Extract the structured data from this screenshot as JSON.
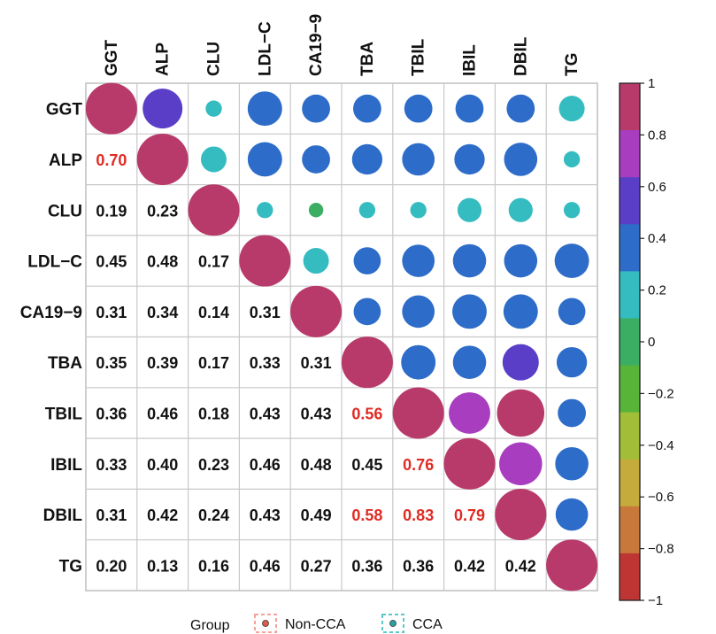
{
  "chart_data": {
    "type": "correlation-matrix",
    "variables": [
      "GGT",
      "ALP",
      "CLU",
      "LDL−C",
      "CA19−9",
      "TBA",
      "TBIL",
      "IBIL",
      "DBIL",
      "TG"
    ],
    "lower_triangle": [
      [],
      [
        "0.70"
      ],
      [
        "0.19",
        "0.23"
      ],
      [
        "0.45",
        "0.48",
        "0.17"
      ],
      [
        "0.31",
        "0.34",
        "0.14",
        "0.31"
      ],
      [
        "0.35",
        "0.39",
        "0.17",
        "0.33",
        "0.31"
      ],
      [
        "0.36",
        "0.46",
        "0.18",
        "0.43",
        "0.43",
        "0.56"
      ],
      [
        "0.33",
        "0.40",
        "0.23",
        "0.46",
        "0.48",
        "0.45",
        "0.76"
      ],
      [
        "0.31",
        "0.42",
        "0.24",
        "0.43",
        "0.49",
        "0.58",
        "0.83",
        "0.79"
      ],
      [
        "0.20",
        "0.13",
        "0.16",
        "0.46",
        "0.27",
        "0.36",
        "0.36",
        "0.42",
        "0.42"
      ]
    ],
    "upper_triangle": [
      [
        null,
        0.6,
        0.1,
        0.45,
        0.3,
        0.3,
        0.3,
        0.3,
        0.3,
        0.25
      ],
      [
        null,
        null,
        0.25,
        0.45,
        0.3,
        0.35,
        0.4,
        0.35,
        0.42,
        0.1
      ],
      [
        null,
        null,
        null,
        0.1,
        0.08,
        0.1,
        0.1,
        0.22,
        0.22,
        0.1
      ],
      [
        null,
        null,
        null,
        null,
        0.25,
        0.28,
        0.4,
        0.42,
        0.42,
        0.45
      ],
      [
        null,
        null,
        null,
        null,
        null,
        0.28,
        0.4,
        0.45,
        0.45,
        0.28
      ],
      [
        null,
        null,
        null,
        null,
        null,
        null,
        0.45,
        0.42,
        0.5,
        0.35
      ],
      [
        null,
        null,
        null,
        null,
        null,
        null,
        null,
        0.65,
        0.85,
        0.3
      ],
      [
        null,
        null,
        null,
        null,
        null,
        null,
        null,
        null,
        0.7,
        0.42
      ],
      [
        null,
        null,
        null,
        null,
        null,
        null,
        null,
        null,
        null,
        0.4
      ]
    ],
    "diagonal": 1,
    "highlight_threshold": 0.5,
    "highlight_color": "#e02b24",
    "text_color": "#111111",
    "colorbar": {
      "range": [
        -1,
        1
      ],
      "ticks": [
        "1",
        "0.8",
        "0.6",
        "0.4",
        "0.2",
        "0",
        "−0.2",
        "−0.4",
        "−0.6",
        "−0.8",
        "−1"
      ],
      "colors": [
        "#b83a6a",
        "#a83dc0",
        "#5a3ec8",
        "#2d6cc8",
        "#35bcc0",
        "#3cae64",
        "#58b438",
        "#a2be38",
        "#c4ab3c",
        "#c8783a",
        "#be3534"
      ]
    },
    "legend": {
      "title": "Group",
      "items": [
        {
          "label": "Non-CCA",
          "color": "#f4a39a",
          "dot": "#e05a4c"
        },
        {
          "label": "CCA",
          "color": "#5cc8c8",
          "dot": "#2aa0a0"
        }
      ]
    }
  }
}
